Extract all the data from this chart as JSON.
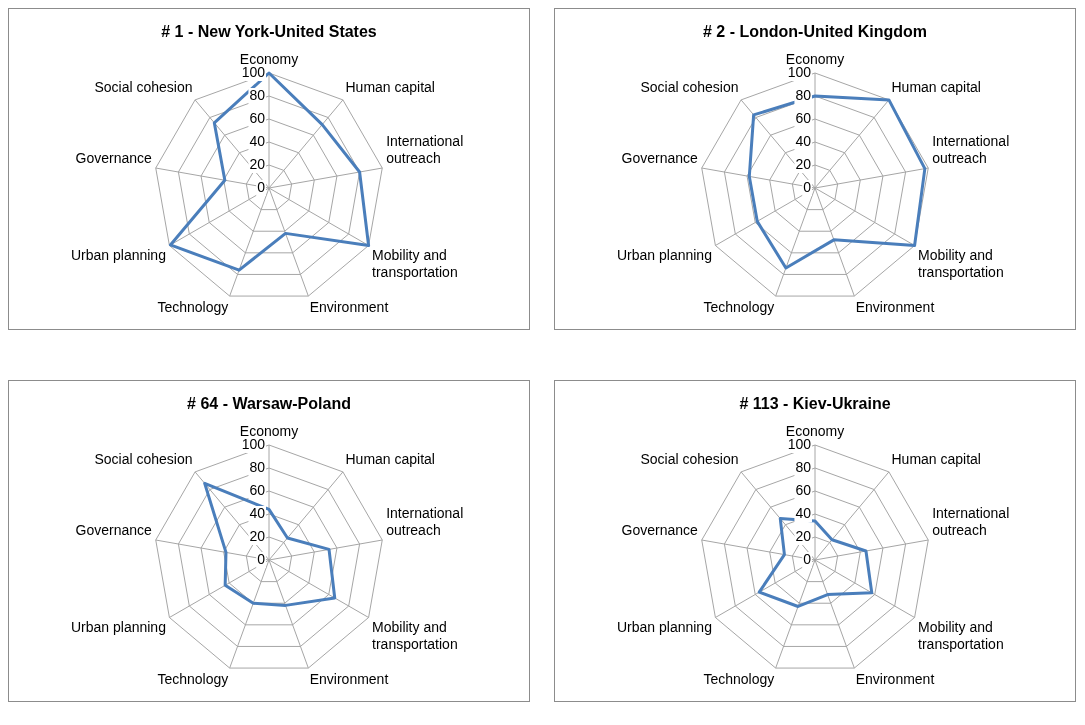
{
  "chart_data": [
    {
      "type": "radar",
      "title": "# 1 - New York-United States",
      "categories": [
        "Economy",
        "Human capital",
        "International outreach",
        "Mobility and transportation",
        "Environment",
        "Technology",
        "Urban planning",
        "Governance",
        "Social cohesion"
      ],
      "series": [
        {
          "color": "#4a7ebb",
          "values": [
            100,
            72,
            80,
            100,
            42,
            76,
            99,
            39,
            74
          ]
        }
      ],
      "ylim": [
        0,
        100
      ],
      "yticks": [
        0,
        20,
        40,
        60,
        80,
        100
      ],
      "grid": true,
      "marker": "none",
      "legend": false
    },
    {
      "type": "radar",
      "title": "# 2 - London-United Kingdom",
      "categories": [
        "Economy",
        "Human capital",
        "International outreach",
        "Mobility and transportation",
        "Environment",
        "Technology",
        "Urban planning",
        "Governance",
        "Social cohesion"
      ],
      "series": [
        {
          "color": "#4a7ebb",
          "values": [
            80,
            100,
            97,
            100,
            48,
            74,
            58,
            58,
            83
          ]
        }
      ],
      "ylim": [
        0,
        100
      ],
      "yticks": [
        0,
        20,
        40,
        60,
        80,
        100
      ],
      "grid": true,
      "marker": "none",
      "legend": false
    },
    {
      "type": "radar",
      "title": "# 64 - Warsaw-Poland",
      "categories": [
        "Economy",
        "Human capital",
        "International outreach",
        "Mobility and transportation",
        "Environment",
        "Technology",
        "Urban planning",
        "Governance",
        "Social cohesion"
      ],
      "series": [
        {
          "color": "#4a7ebb",
          "values": [
            44,
            25,
            53,
            66,
            42,
            40,
            44,
            38,
            87
          ]
        }
      ],
      "ylim": [
        0,
        100
      ],
      "yticks": [
        0,
        20,
        40,
        60,
        80,
        100
      ],
      "grid": true,
      "marker": "none",
      "legend": false
    },
    {
      "type": "radar",
      "title": "# 113 - Kiev-Ukraine",
      "categories": [
        "Economy",
        "Human capital",
        "International outreach",
        "Mobility and transportation",
        "Environment",
        "Technology",
        "Urban planning",
        "Governance",
        "Social cohesion"
      ],
      "series": [
        {
          "color": "#4a7ebb",
          "values": [
            34,
            23,
            45,
            57,
            32,
            43,
            56,
            27,
            47
          ]
        }
      ],
      "ylim": [
        0,
        100
      ],
      "yticks": [
        0,
        20,
        40,
        60,
        80,
        100
      ],
      "grid": true,
      "marker": "none",
      "legend": false
    }
  ]
}
